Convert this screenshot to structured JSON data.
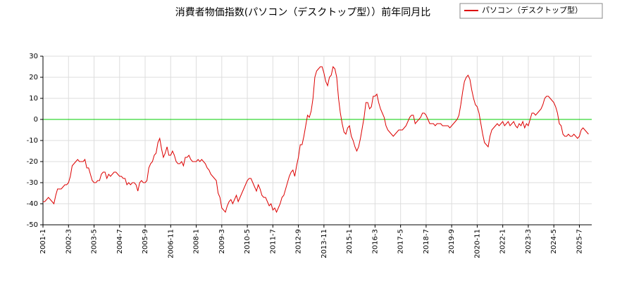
{
  "chart_data": {
    "type": "line",
    "title": "消費者物価指数(パソコン（デスクトップ型））前年同月比",
    "categories": [
      "2001-1",
      null,
      null,
      null,
      null,
      null,
      null,
      null,
      null,
      null,
      null,
      null,
      null,
      null,
      "2002-3",
      null,
      null,
      null,
      null,
      null,
      null,
      null,
      null,
      null,
      null,
      null,
      null,
      null,
      "2003-5",
      null,
      null,
      null,
      null,
      null,
      null,
      null,
      null,
      null,
      null,
      null,
      null,
      null,
      "2004-7",
      null,
      null,
      null,
      null,
      null,
      null,
      null,
      null,
      null,
      null,
      null,
      null,
      null,
      "2005-9",
      null,
      null,
      null,
      null,
      null,
      null,
      null,
      null,
      null,
      null,
      null,
      null,
      null,
      "2006-11",
      null,
      null,
      null,
      null,
      null,
      null,
      null,
      null,
      null,
      null,
      null,
      null,
      null,
      "2008-1",
      null,
      null,
      null,
      null,
      null,
      null,
      null,
      null,
      null,
      null,
      null,
      null,
      null,
      "2009-3",
      null,
      null,
      null,
      null,
      null,
      null,
      null,
      null,
      null,
      null,
      null,
      null,
      null,
      "2010-5",
      null,
      null,
      null,
      null,
      null,
      null,
      null,
      null,
      null,
      null,
      null,
      null,
      null,
      "2011-7",
      null,
      null,
      null,
      null,
      null,
      null,
      null,
      null,
      null,
      null,
      null,
      null,
      null,
      "2012-9",
      null,
      null,
      null,
      null,
      null,
      null,
      null,
      null,
      null,
      null,
      null,
      null,
      null,
      "2013-11",
      null,
      null,
      null,
      null,
      null,
      null,
      null,
      null,
      null,
      null,
      null,
      null,
      null,
      "2015-1",
      null,
      null,
      null,
      null,
      null,
      null,
      null,
      null,
      null,
      null,
      null,
      null,
      null,
      "2016-3",
      null,
      null,
      null,
      null,
      null,
      null,
      null,
      null,
      null,
      null,
      null,
      null,
      null,
      "2017-5",
      null,
      null,
      null,
      null,
      null,
      null,
      null,
      null,
      null,
      null,
      null,
      null,
      null,
      "2018-7",
      null,
      null,
      null,
      null,
      null,
      null,
      null,
      null,
      null,
      null,
      null,
      null,
      null,
      "2019-9",
      null,
      null,
      null,
      null,
      null,
      null,
      null,
      null,
      null,
      null,
      null,
      null,
      null,
      "2020-11",
      null,
      null,
      null,
      null,
      null,
      null,
      null,
      null,
      null,
      null,
      null,
      null,
      null,
      "2022-1",
      null,
      null,
      null,
      null,
      null,
      null,
      null,
      null,
      null,
      null,
      null,
      null,
      null,
      "2023-3",
      null,
      null,
      null,
      null,
      null,
      null,
      null,
      null,
      null,
      null,
      null,
      null,
      null,
      "2024-5",
      null,
      null,
      null,
      null,
      null,
      null,
      null,
      null,
      null,
      null,
      null,
      null,
      null,
      "2025-7",
      null,
      null,
      null,
      null,
      null
    ],
    "series": [
      {
        "name": "パソコン（デスクトップ型）",
        "color": "#dd0000",
        "values": [
          -39,
          -39,
          -38,
          -37,
          -38,
          -39,
          -40,
          -36,
          -33,
          -33,
          -33,
          -32,
          -31,
          -31,
          -30,
          -27,
          -22,
          -21,
          -20,
          -19,
          -20,
          -20,
          -20,
          -19,
          -23,
          -23,
          -26,
          -29,
          -30,
          -30,
          -29,
          -29,
          -26,
          -25,
          -25,
          -28,
          -26,
          -27,
          -26,
          -25,
          -25,
          -26,
          -27,
          -27,
          -28,
          -28,
          -31,
          -30,
          -31,
          -30,
          -30,
          -31,
          -34,
          -30,
          -29,
          -30,
          -30,
          -29,
          -23,
          -21,
          -20,
          -17,
          -16,
          -11,
          -9,
          -14,
          -18,
          -16,
          -13,
          -17,
          -17,
          -15,
          -17,
          -20,
          -21,
          -21,
          -20,
          -22,
          -18,
          -18,
          -17,
          -19,
          -20,
          -20,
          -20,
          -19,
          -20,
          -19,
          -20,
          -21,
          -23,
          -24,
          -26,
          -27,
          -28,
          -29,
          -35,
          -37,
          -42,
          -43,
          -44,
          -41,
          -39,
          -38,
          -40,
          -38,
          -36,
          -39,
          -37,
          -35,
          -33,
          -31,
          -29,
          -28,
          -28,
          -30,
          -32,
          -34,
          -31,
          -33,
          -36,
          -37,
          -37,
          -39,
          -41,
          -40,
          -43,
          -42,
          -44,
          -42,
          -40,
          -37,
          -36,
          -33,
          -30,
          -27,
          -25,
          -24,
          -27,
          -22,
          -18,
          -12,
          -12,
          -8,
          -3,
          2,
          1,
          4,
          10,
          20,
          23,
          24,
          25,
          25,
          22,
          18,
          16,
          20,
          21,
          25,
          24,
          20,
          10,
          3,
          -2,
          -6,
          -7,
          -4,
          -3,
          -8,
          -10,
          -13,
          -15,
          -13,
          -9,
          -4,
          1,
          8,
          8,
          5,
          6,
          11,
          11,
          12,
          8,
          5,
          3,
          1,
          -3,
          -5,
          -6,
          -7,
          -8,
          -7,
          -6,
          -5,
          -5,
          -5,
          -4,
          -3,
          -1,
          1,
          2,
          2,
          -2,
          -1,
          0,
          1,
          3,
          3,
          2,
          0,
          -2,
          -2,
          -2,
          -3,
          -2,
          -2,
          -2,
          -3,
          -3,
          -3,
          -3,
          -4,
          -3,
          -2,
          -1,
          0,
          2,
          7,
          13,
          18,
          20,
          21,
          19,
          14,
          10,
          7,
          6,
          3,
          -2,
          -7,
          -11,
          -12,
          -13,
          -8,
          -5,
          -4,
          -3,
          -2,
          -3,
          -2,
          -1,
          -3,
          -2,
          -1,
          -3,
          -2,
          -1,
          -3,
          -4,
          -2,
          -3,
          -1,
          -4,
          -2,
          -3,
          0,
          3,
          3,
          2,
          3,
          4,
          5,
          7,
          10,
          11,
          11,
          10,
          9,
          8,
          6,
          3,
          -2,
          -3,
          -7,
          -8,
          -8,
          -7,
          -8,
          -8,
          -7,
          -8,
          -9,
          -8,
          -5,
          -4,
          -5,
          -6,
          -7
        ]
      }
    ],
    "ylim": [
      -50,
      30
    ],
    "yticks": [
      -50,
      -40,
      -30,
      -20,
      -10,
      0,
      10,
      20,
      30
    ],
    "grid": true,
    "hline": 0,
    "hline_color": "#00cc00",
    "legend": "upper right"
  }
}
